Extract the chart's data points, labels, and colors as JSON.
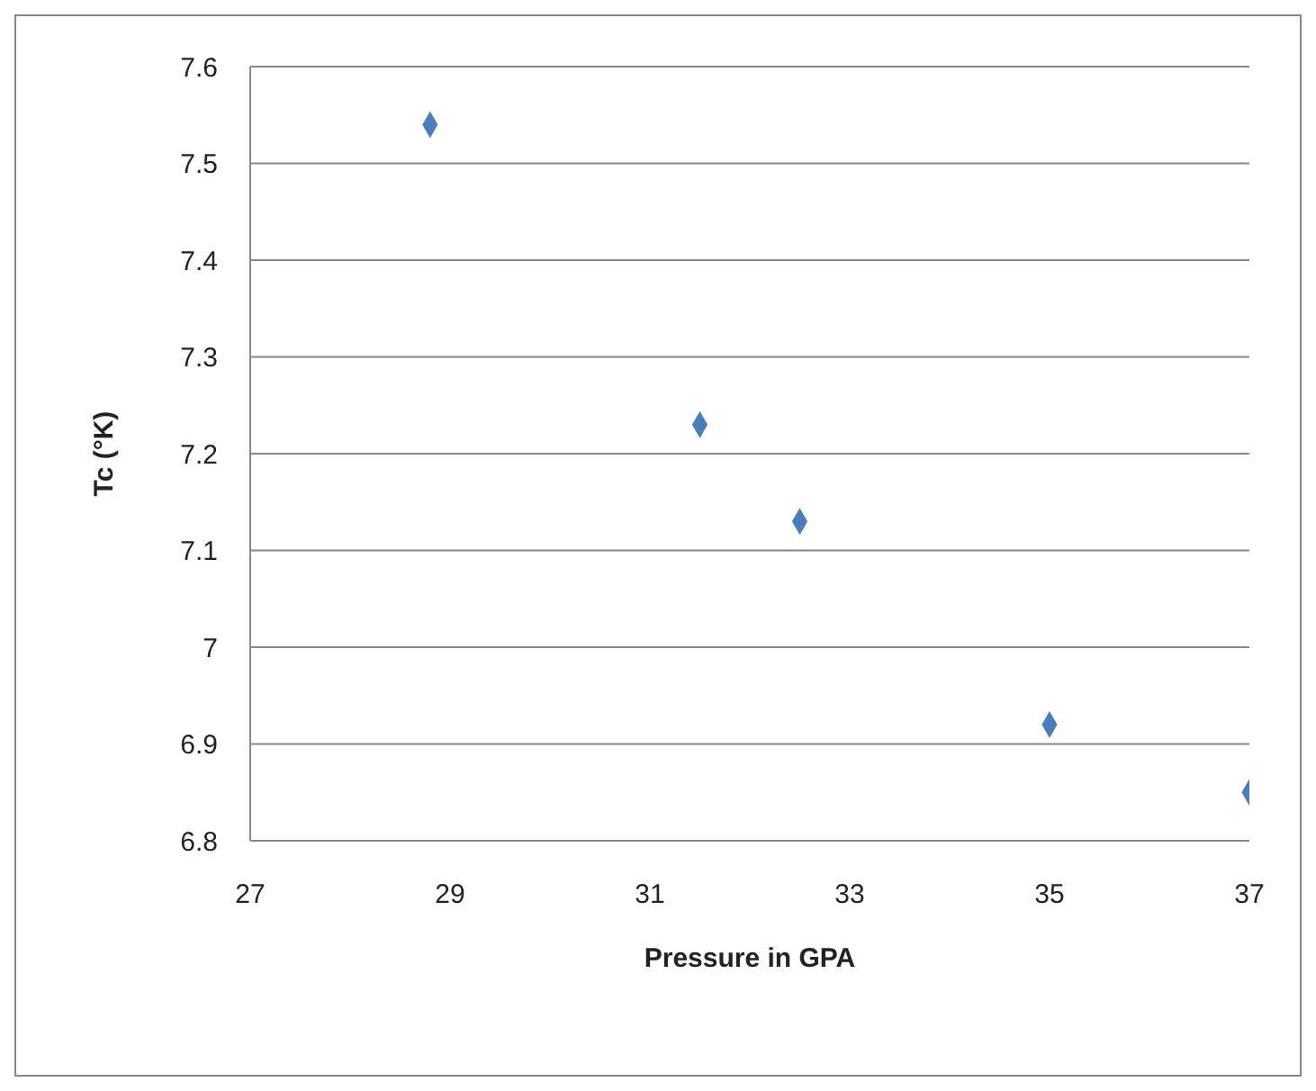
{
  "chart_data": {
    "type": "scatter",
    "xlabel": "Pressure in GPA",
    "ylabel": "Tc (°K)",
    "x": [
      28.8,
      31.5,
      32.5,
      35,
      37
    ],
    "values": [
      7.54,
      7.23,
      7.13,
      6.92,
      6.85
    ],
    "color": "#4a7ebb",
    "marker": "diamond",
    "grid": "y",
    "legend": false,
    "xlim": [
      27,
      37
    ],
    "xticks": [
      27,
      29,
      31,
      33,
      35,
      37
    ],
    "ylim": [
      6.8,
      7.6
    ],
    "yticks": [
      6.8,
      6.9,
      7,
      7.1,
      7.2,
      7.3,
      7.4,
      7.5,
      7.6
    ]
  }
}
